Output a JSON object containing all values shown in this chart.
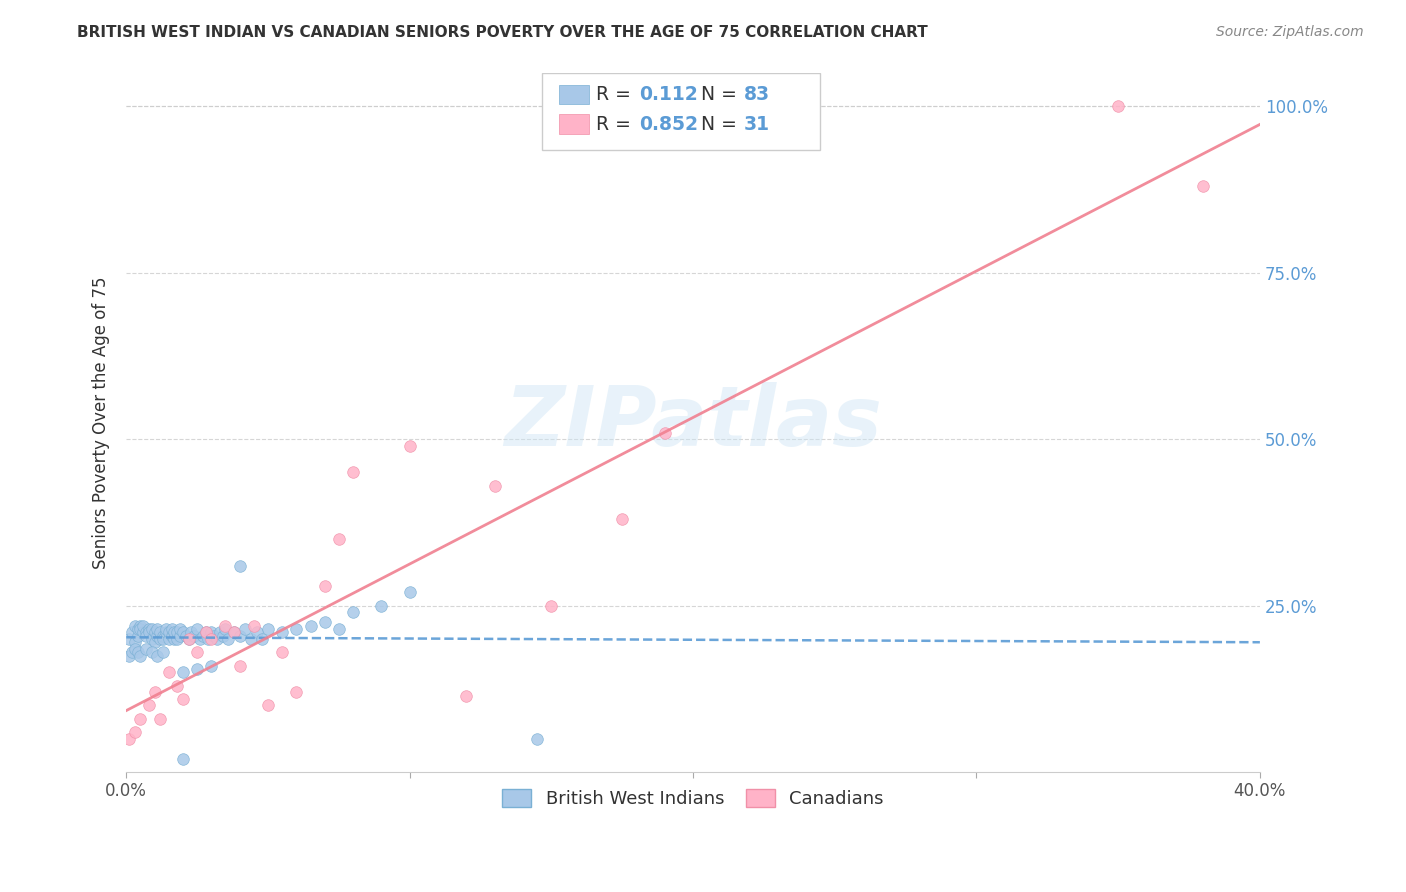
{
  "title": "BRITISH WEST INDIAN VS CANADIAN SENIORS POVERTY OVER THE AGE OF 75 CORRELATION CHART",
  "source": "Source: ZipAtlas.com",
  "ylabel": "Seniors Poverty Over the Age of 75",
  "xlim": [
    0.0,
    0.4
  ],
  "ylim": [
    0.0,
    1.05
  ],
  "x_ticks": [
    0.0,
    0.1,
    0.2,
    0.3,
    0.4
  ],
  "x_tick_labels": [
    "0.0%",
    "",
    "",
    "",
    "40.0%"
  ],
  "y_ticks": [
    0.0,
    0.25,
    0.5,
    0.75,
    1.0
  ],
  "y_tick_labels_right": [
    "",
    "25.0%",
    "50.0%",
    "75.0%",
    "100.0%"
  ],
  "watermark_text": "ZIPatlas",
  "blue_scatter_color": "#a8c8e8",
  "blue_scatter_edge": "#7ab0d4",
  "pink_scatter_color": "#ffb3c8",
  "pink_scatter_edge": "#f090a8",
  "blue_line_color": "#5b9bd5",
  "pink_line_color": "#f08090",
  "grid_color": "#cccccc",
  "right_axis_color": "#5b9bd5",
  "title_color": "#333333",
  "source_color": "#888888",
  "legend_r1_black": "R = ",
  "legend_r1_blue": "0.112",
  "legend_n1_black": "  N = ",
  "legend_n1_blue": "83",
  "legend_r2_black": "R = ",
  "legend_r2_blue": "0.852",
  "legend_n2_black": "  N = ",
  "legend_n2_blue": "31",
  "bwi_x": [
    0.001,
    0.002,
    0.003,
    0.003,
    0.004,
    0.004,
    0.005,
    0.005,
    0.006,
    0.006,
    0.007,
    0.007,
    0.008,
    0.008,
    0.009,
    0.009,
    0.01,
    0.01,
    0.011,
    0.011,
    0.012,
    0.012,
    0.013,
    0.013,
    0.014,
    0.014,
    0.015,
    0.015,
    0.016,
    0.016,
    0.017,
    0.017,
    0.018,
    0.018,
    0.019,
    0.019,
    0.02,
    0.021,
    0.022,
    0.023,
    0.024,
    0.025,
    0.026,
    0.027,
    0.028,
    0.029,
    0.03,
    0.031,
    0.032,
    0.033,
    0.034,
    0.035,
    0.036,
    0.038,
    0.04,
    0.042,
    0.044,
    0.046,
    0.048,
    0.05,
    0.055,
    0.06,
    0.065,
    0.07,
    0.075,
    0.08,
    0.09,
    0.1,
    0.04,
    0.02,
    0.001,
    0.002,
    0.003,
    0.004,
    0.005,
    0.007,
    0.009,
    0.011,
    0.013,
    0.145,
    0.02,
    0.025,
    0.03
  ],
  "bwi_y": [
    0.2,
    0.21,
    0.195,
    0.22,
    0.205,
    0.215,
    0.22,
    0.215,
    0.21,
    0.22,
    0.21,
    0.205,
    0.215,
    0.21,
    0.2,
    0.215,
    0.195,
    0.21,
    0.205,
    0.215,
    0.2,
    0.21,
    0.205,
    0.2,
    0.21,
    0.215,
    0.2,
    0.21,
    0.205,
    0.215,
    0.2,
    0.21,
    0.2,
    0.21,
    0.205,
    0.215,
    0.21,
    0.205,
    0.2,
    0.21,
    0.205,
    0.215,
    0.2,
    0.205,
    0.21,
    0.2,
    0.21,
    0.205,
    0.2,
    0.21,
    0.205,
    0.215,
    0.2,
    0.21,
    0.205,
    0.215,
    0.2,
    0.21,
    0.2,
    0.215,
    0.21,
    0.215,
    0.22,
    0.225,
    0.215,
    0.24,
    0.25,
    0.27,
    0.31,
    0.02,
    0.175,
    0.18,
    0.185,
    0.18,
    0.175,
    0.185,
    0.18,
    0.175,
    0.18,
    0.05,
    0.15,
    0.155,
    0.16
  ],
  "cdn_x": [
    0.001,
    0.003,
    0.005,
    0.008,
    0.01,
    0.012,
    0.015,
    0.018,
    0.02,
    0.022,
    0.025,
    0.028,
    0.03,
    0.035,
    0.038,
    0.04,
    0.045,
    0.05,
    0.055,
    0.06,
    0.07,
    0.075,
    0.08,
    0.1,
    0.12,
    0.13,
    0.15,
    0.175,
    0.19,
    0.35,
    0.38
  ],
  "cdn_y": [
    0.05,
    0.06,
    0.08,
    0.1,
    0.12,
    0.08,
    0.15,
    0.13,
    0.11,
    0.2,
    0.18,
    0.21,
    0.2,
    0.22,
    0.21,
    0.16,
    0.22,
    0.1,
    0.18,
    0.12,
    0.28,
    0.35,
    0.45,
    0.49,
    0.115,
    0.43,
    0.25,
    0.38,
    0.51,
    1.0,
    0.88
  ]
}
